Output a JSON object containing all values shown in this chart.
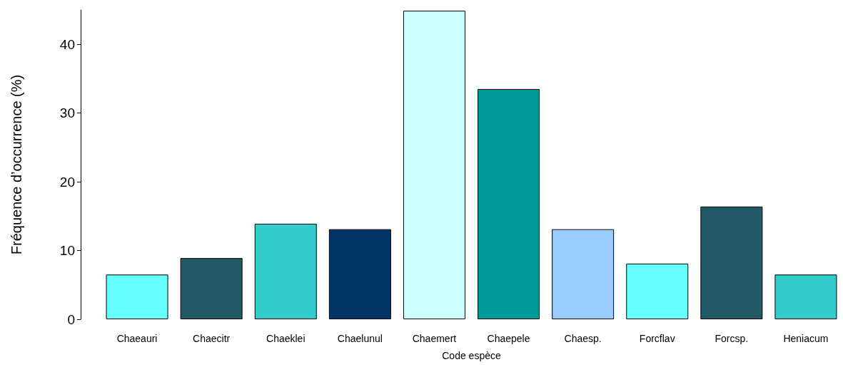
{
  "chart_data": {
    "type": "bar",
    "xlabel": "Code espèce",
    "ylabel": "Fréquence d’occurrence (%)",
    "categories": [
      "Chaeauri",
      "Chaecitr",
      "Chaeklei",
      "Chaelunul",
      "Chaemert",
      "Chaepele",
      "Chaesp.",
      "Forcflav",
      "Forcsp.",
      "Heniacum"
    ],
    "values": [
      6.5,
      8.9,
      13.9,
      13.1,
      44.9,
      33.5,
      13.1,
      8.1,
      16.4,
      6.5
    ],
    "colors": [
      "#66ffff",
      "#215a66",
      "#33cccc",
      "#003366",
      "#ccffff",
      "#009999",
      "#99ccff",
      "#66ffff",
      "#215a66",
      "#33cccc"
    ],
    "ylim": [
      0,
      45
    ],
    "yticks": [
      0,
      10,
      20,
      30,
      40
    ],
    "grid": false
  }
}
